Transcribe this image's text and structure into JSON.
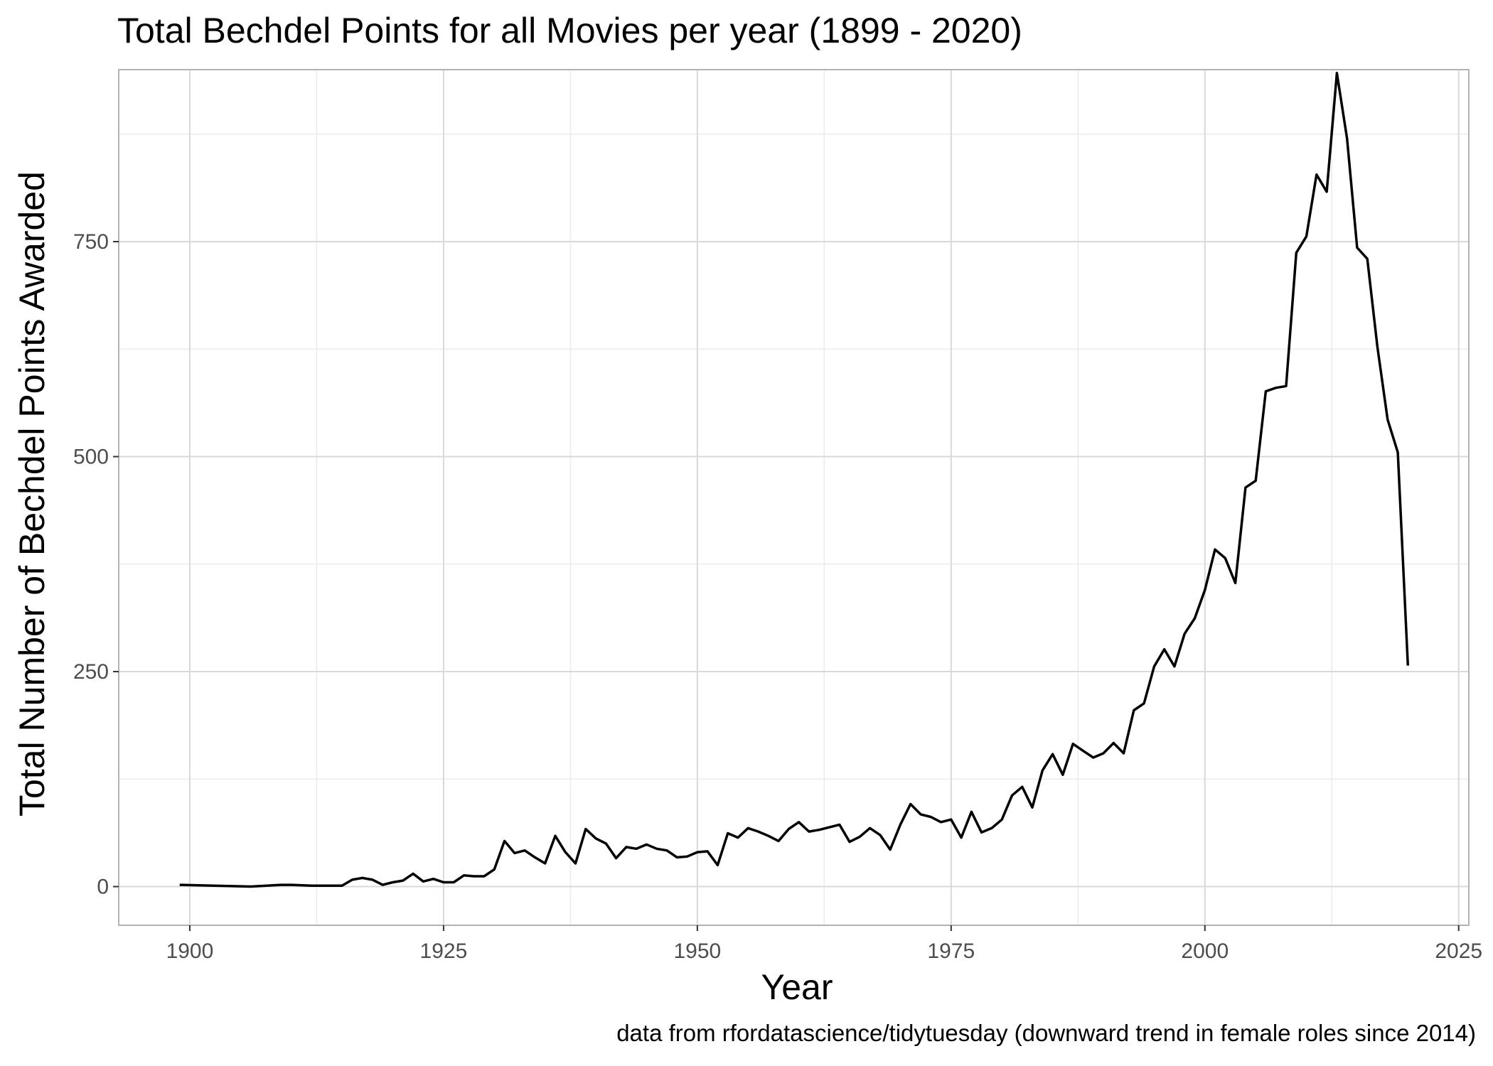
{
  "chart_data": {
    "type": "line",
    "title": "Total Bechdel Points for all Movies per year (1899 - 2020)",
    "xlabel": "Year",
    "ylabel": "Total Number of Bechdel Points Awarded",
    "caption": "data from rfordatascience/tidytuesday (downward trend in female roles since 2014)",
    "xlim": [
      1893,
      2026
    ],
    "ylim": [
      -45,
      950
    ],
    "x_ticks": [
      1900,
      1925,
      1950,
      1975,
      2000,
      2025
    ],
    "y_ticks": [
      0,
      250,
      500,
      750
    ],
    "grid": true,
    "line_color": "#000000",
    "series": [
      {
        "x": [
          1899,
          1906,
          1909,
          1910,
          1912,
          1913,
          1914,
          1915,
          1916,
          1917,
          1918,
          1919,
          1920,
          1921,
          1922,
          1923,
          1924,
          1925,
          1926,
          1927,
          1928,
          1929,
          1930,
          1931,
          1932,
          1933,
          1934,
          1935,
          1936,
          1937,
          1938,
          1939,
          1940,
          1941,
          1942,
          1943,
          1944,
          1945,
          1946,
          1947,
          1948,
          1949,
          1950,
          1951,
          1952,
          1953,
          1954,
          1955,
          1956,
          1957,
          1958,
          1959,
          1960,
          1961,
          1962,
          1963,
          1964,
          1965,
          1966,
          1967,
          1968,
          1969,
          1970,
          1971,
          1972,
          1973,
          1974,
          1975,
          1976,
          1977,
          1978,
          1979,
          1980,
          1981,
          1982,
          1983,
          1984,
          1985,
          1986,
          1987,
          1988,
          1989,
          1990,
          1991,
          1992,
          1993,
          1994,
          1995,
          1996,
          1997,
          1998,
          1999,
          2000,
          2001,
          2002,
          2003,
          2004,
          2005,
          2006,
          2007,
          2008,
          2009,
          2010,
          2011,
          2012,
          2013,
          2014,
          2015,
          2016,
          2017,
          2018,
          2019,
          2020
        ],
        "y": [
          2,
          0,
          2,
          2,
          1,
          1,
          1,
          1,
          8,
          10,
          8,
          2,
          5,
          7,
          15,
          6,
          9,
          5,
          5,
          13,
          12,
          12,
          20,
          53,
          39,
          42,
          34,
          27,
          59,
          40,
          27,
          67,
          56,
          50,
          33,
          46,
          44,
          49,
          44,
          42,
          34,
          35,
          40,
          41,
          25,
          62,
          57,
          68,
          64,
          59,
          53,
          67,
          75,
          64,
          66,
          69,
          72,
          52,
          58,
          68,
          60,
          43,
          72,
          96,
          84,
          81,
          75,
          78,
          57,
          87,
          63,
          68,
          78,
          106,
          116,
          92,
          135,
          154,
          130,
          166,
          158,
          150,
          155,
          167,
          155,
          205,
          213,
          256,
          276,
          256,
          294,
          312,
          345,
          392,
          382,
          353,
          464,
          472,
          576,
          580,
          582,
          737,
          756,
          828,
          808,
          946,
          870,
          743,
          730,
          627,
          543,
          505,
          257
        ]
      }
    ]
  }
}
